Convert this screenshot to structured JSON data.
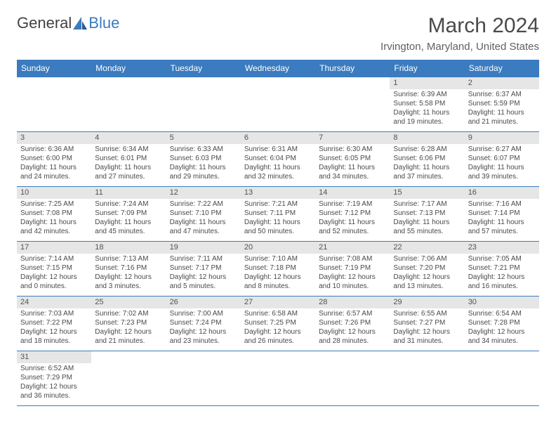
{
  "logo": {
    "text1": "General",
    "text2": "Blue"
  },
  "title": "March 2024",
  "subtitle": "Irvington, Maryland, United States",
  "colors": {
    "accent": "#3b7bbf",
    "header_band": "#e6e6e6",
    "text_dark": "#4a4a4a",
    "background": "#ffffff"
  },
  "weekday_headers": [
    "Sunday",
    "Monday",
    "Tuesday",
    "Wednesday",
    "Thursday",
    "Friday",
    "Saturday"
  ],
  "weeks": [
    [
      null,
      null,
      null,
      null,
      null,
      {
        "n": "1",
        "sr": "6:39 AM",
        "ss": "5:58 PM",
        "dl": "11 hours and 19 minutes."
      },
      {
        "n": "2",
        "sr": "6:37 AM",
        "ss": "5:59 PM",
        "dl": "11 hours and 21 minutes."
      }
    ],
    [
      {
        "n": "3",
        "sr": "6:36 AM",
        "ss": "6:00 PM",
        "dl": "11 hours and 24 minutes."
      },
      {
        "n": "4",
        "sr": "6:34 AM",
        "ss": "6:01 PM",
        "dl": "11 hours and 27 minutes."
      },
      {
        "n": "5",
        "sr": "6:33 AM",
        "ss": "6:03 PM",
        "dl": "11 hours and 29 minutes."
      },
      {
        "n": "6",
        "sr": "6:31 AM",
        "ss": "6:04 PM",
        "dl": "11 hours and 32 minutes."
      },
      {
        "n": "7",
        "sr": "6:30 AM",
        "ss": "6:05 PM",
        "dl": "11 hours and 34 minutes."
      },
      {
        "n": "8",
        "sr": "6:28 AM",
        "ss": "6:06 PM",
        "dl": "11 hours and 37 minutes."
      },
      {
        "n": "9",
        "sr": "6:27 AM",
        "ss": "6:07 PM",
        "dl": "11 hours and 39 minutes."
      }
    ],
    [
      {
        "n": "10",
        "sr": "7:25 AM",
        "ss": "7:08 PM",
        "dl": "11 hours and 42 minutes."
      },
      {
        "n": "11",
        "sr": "7:24 AM",
        "ss": "7:09 PM",
        "dl": "11 hours and 45 minutes."
      },
      {
        "n": "12",
        "sr": "7:22 AM",
        "ss": "7:10 PM",
        "dl": "11 hours and 47 minutes."
      },
      {
        "n": "13",
        "sr": "7:21 AM",
        "ss": "7:11 PM",
        "dl": "11 hours and 50 minutes."
      },
      {
        "n": "14",
        "sr": "7:19 AM",
        "ss": "7:12 PM",
        "dl": "11 hours and 52 minutes."
      },
      {
        "n": "15",
        "sr": "7:17 AM",
        "ss": "7:13 PM",
        "dl": "11 hours and 55 minutes."
      },
      {
        "n": "16",
        "sr": "7:16 AM",
        "ss": "7:14 PM",
        "dl": "11 hours and 57 minutes."
      }
    ],
    [
      {
        "n": "17",
        "sr": "7:14 AM",
        "ss": "7:15 PM",
        "dl": "12 hours and 0 minutes."
      },
      {
        "n": "18",
        "sr": "7:13 AM",
        "ss": "7:16 PM",
        "dl": "12 hours and 3 minutes."
      },
      {
        "n": "19",
        "sr": "7:11 AM",
        "ss": "7:17 PM",
        "dl": "12 hours and 5 minutes."
      },
      {
        "n": "20",
        "sr": "7:10 AM",
        "ss": "7:18 PM",
        "dl": "12 hours and 8 minutes."
      },
      {
        "n": "21",
        "sr": "7:08 AM",
        "ss": "7:19 PM",
        "dl": "12 hours and 10 minutes."
      },
      {
        "n": "22",
        "sr": "7:06 AM",
        "ss": "7:20 PM",
        "dl": "12 hours and 13 minutes."
      },
      {
        "n": "23",
        "sr": "7:05 AM",
        "ss": "7:21 PM",
        "dl": "12 hours and 16 minutes."
      }
    ],
    [
      {
        "n": "24",
        "sr": "7:03 AM",
        "ss": "7:22 PM",
        "dl": "12 hours and 18 minutes."
      },
      {
        "n": "25",
        "sr": "7:02 AM",
        "ss": "7:23 PM",
        "dl": "12 hours and 21 minutes."
      },
      {
        "n": "26",
        "sr": "7:00 AM",
        "ss": "7:24 PM",
        "dl": "12 hours and 23 minutes."
      },
      {
        "n": "27",
        "sr": "6:58 AM",
        "ss": "7:25 PM",
        "dl": "12 hours and 26 minutes."
      },
      {
        "n": "28",
        "sr": "6:57 AM",
        "ss": "7:26 PM",
        "dl": "12 hours and 28 minutes."
      },
      {
        "n": "29",
        "sr": "6:55 AM",
        "ss": "7:27 PM",
        "dl": "12 hours and 31 minutes."
      },
      {
        "n": "30",
        "sr": "6:54 AM",
        "ss": "7:28 PM",
        "dl": "12 hours and 34 minutes."
      }
    ],
    [
      {
        "n": "31",
        "sr": "6:52 AM",
        "ss": "7:29 PM",
        "dl": "12 hours and 36 minutes."
      },
      null,
      null,
      null,
      null,
      null,
      null
    ]
  ],
  "labels": {
    "sunrise": "Sunrise: ",
    "sunset": "Sunset: ",
    "daylight": "Daylight: "
  }
}
